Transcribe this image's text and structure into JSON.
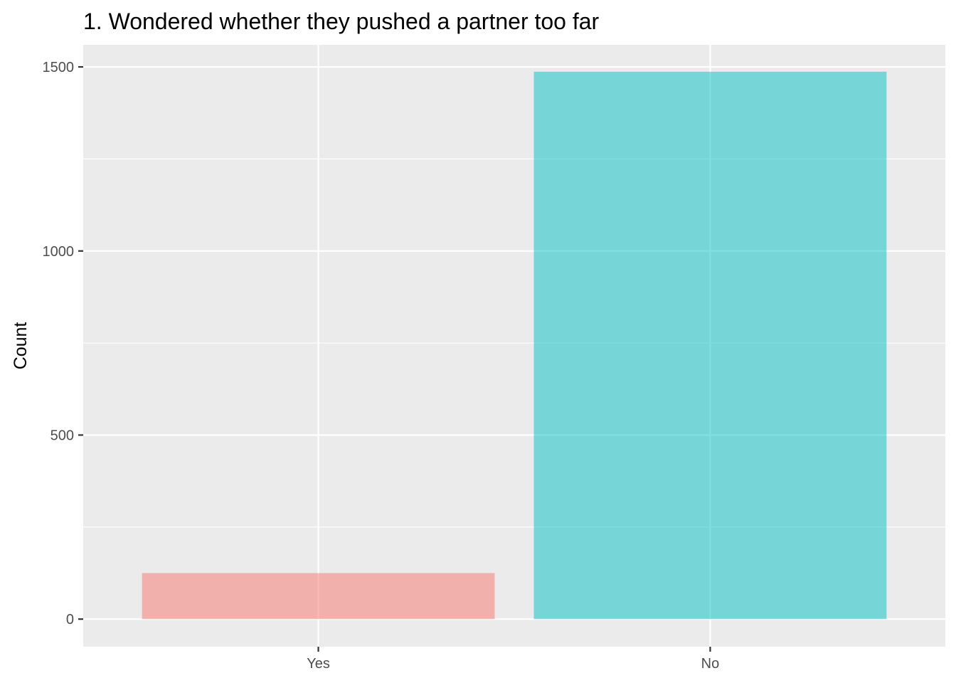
{
  "chart_data": {
    "type": "bar",
    "title": "1. Wondered whether they pushed a partner too far",
    "xlabel": "",
    "ylabel": "Count",
    "categories": [
      "Yes",
      "No"
    ],
    "values": [
      125,
      1487
    ],
    "ylim": [
      -75,
      1560
    ],
    "yticks": [
      0,
      500,
      1000,
      1500
    ],
    "yticks_minor": [
      250,
      750,
      1250
    ],
    "ytick_labels": [
      "0",
      "500",
      "1000",
      "1500"
    ],
    "grid": true,
    "legend": "none",
    "colors": {
      "panel": "#EBEBEB",
      "grid": "#FFFFFF",
      "bars": [
        "#F8766D",
        "#00BFC4"
      ],
      "bar_opacity": 0.5
    }
  }
}
